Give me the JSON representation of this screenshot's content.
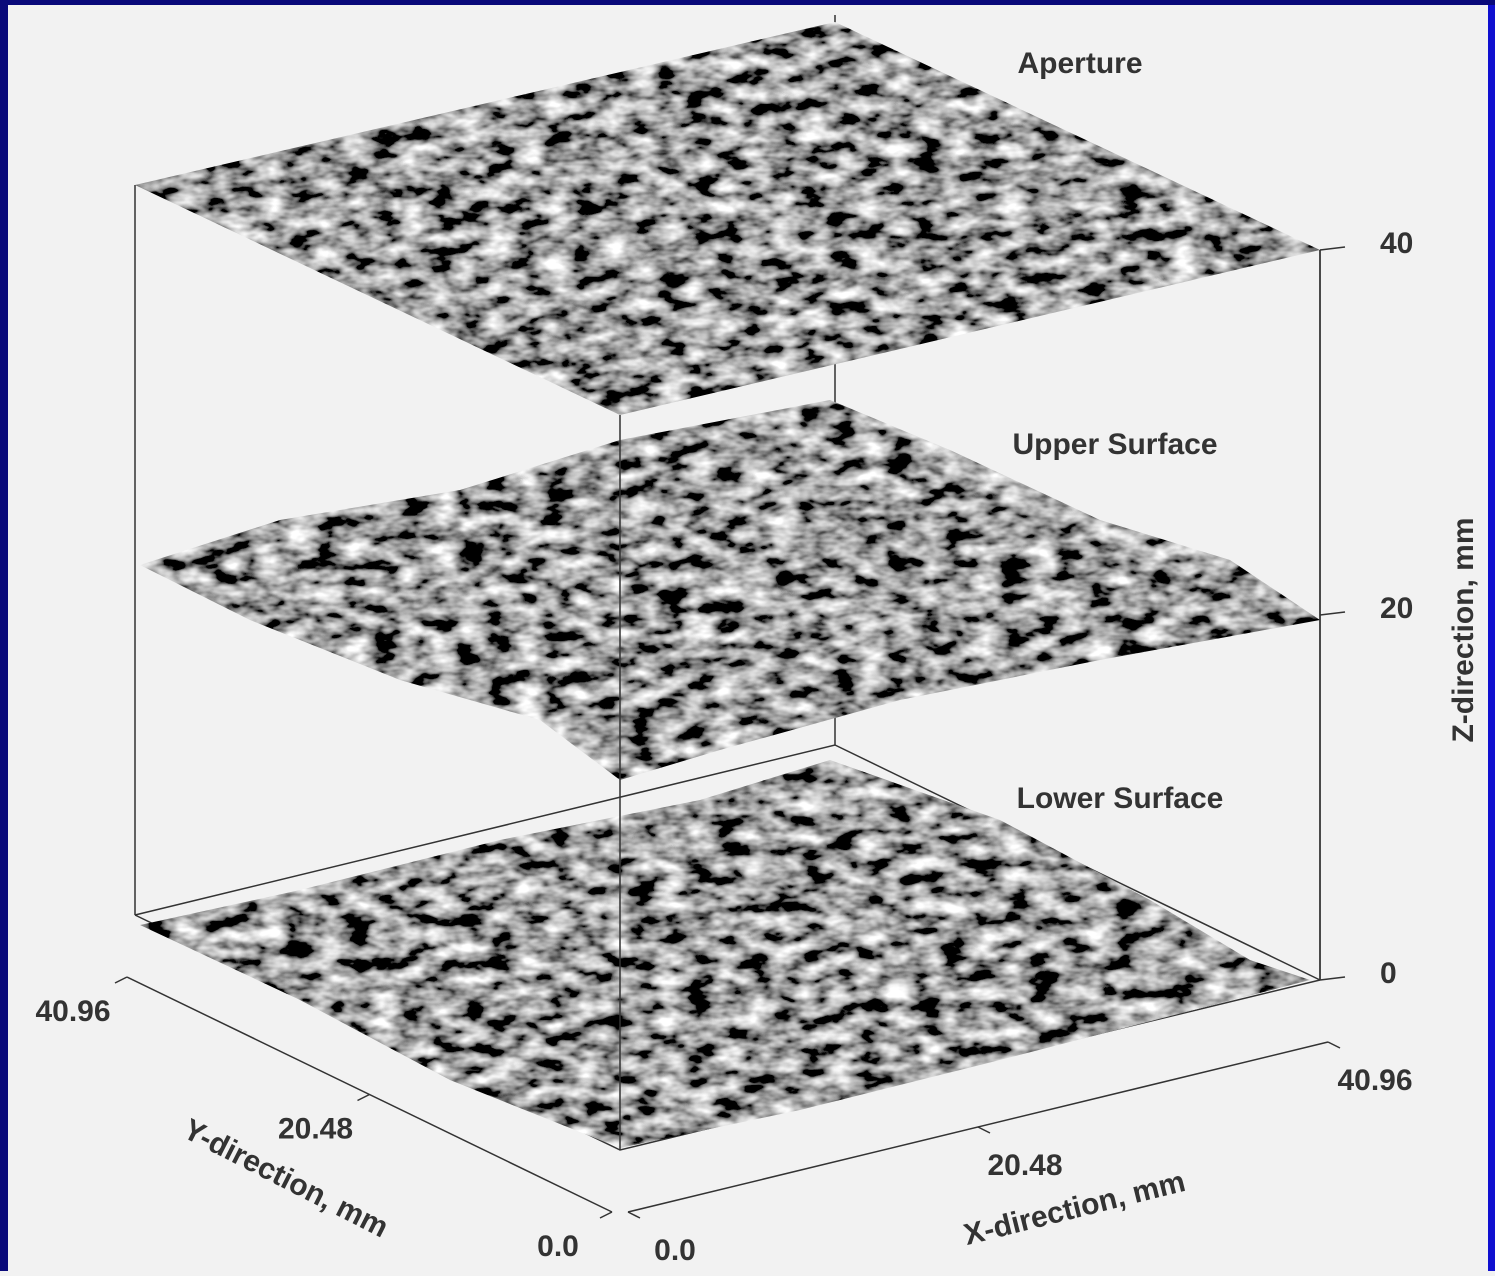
{
  "chart_data": {
    "type": "surface3d",
    "surfaces": [
      "Aperture",
      "Upper Surface",
      "Lower Surface"
    ],
    "xlabel": "X-direction, mm",
    "ylabel": "Y-direction, mm",
    "zlabel": "Z-direction, mm",
    "xlim": [
      0,
      40.96
    ],
    "ylim": [
      0,
      40.96
    ],
    "zlim": [
      0,
      40
    ],
    "xticks": [
      {
        "value": 0,
        "label": "0.0"
      },
      20.48,
      40.96
    ],
    "yticks": [
      {
        "value": 0,
        "label": "0.0"
      },
      20.48,
      40.96
    ],
    "zticks": [
      0,
      20,
      40
    ]
  }
}
